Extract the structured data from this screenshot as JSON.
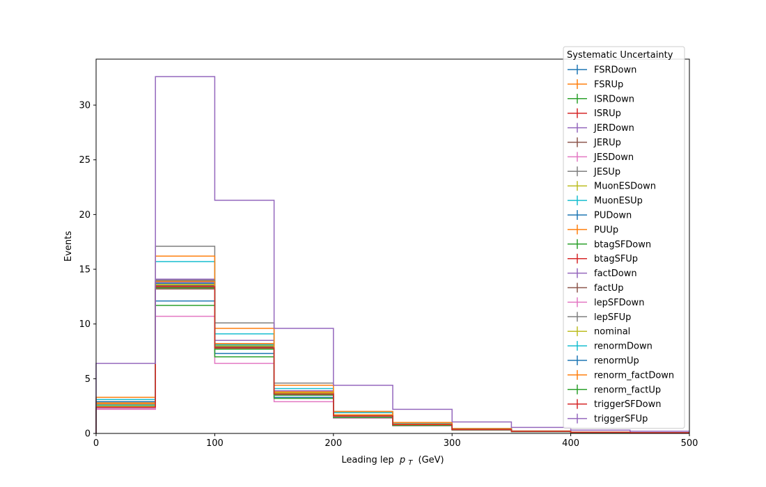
{
  "chart_data": {
    "type": "line",
    "drawstyle": "steps-post",
    "title": "",
    "xlabel": "Leading lep",
    "xlabel_math_symbol": "p",
    "xlabel_math_subscript": "T",
    "xlabel_unit": "(GeV)",
    "ylabel": "Events",
    "xlim": [
      0,
      500
    ],
    "ylim": [
      0,
      34.2
    ],
    "x_ticks": [
      0,
      100,
      200,
      300,
      400,
      500
    ],
    "y_ticks": [
      0,
      5,
      10,
      15,
      20,
      25,
      30
    ],
    "grid": false,
    "legend": {
      "title": "Systematic Uncertainty",
      "placement": "top-right"
    },
    "bin_edges": [
      0,
      50,
      100,
      150,
      200,
      250,
      300,
      350,
      400,
      450,
      500
    ],
    "series": [
      {
        "name": "FSRDown",
        "color": "#1f77b4",
        "values": [
          2.5,
          13.7,
          7.9,
          3.6,
          1.6,
          0.8,
          0.35,
          0.18,
          0.1,
          0.06
        ]
      },
      {
        "name": "FSRUp",
        "color": "#ff7f0e",
        "values": [
          2.8,
          13.9,
          8.1,
          3.8,
          1.7,
          0.85,
          0.37,
          0.19,
          0.1,
          0.06
        ]
      },
      {
        "name": "ISRDown",
        "color": "#2ca02c",
        "values": [
          2.5,
          13.8,
          8.0,
          3.7,
          1.6,
          0.82,
          0.36,
          0.18,
          0.1,
          0.06
        ]
      },
      {
        "name": "ISRUp",
        "color": "#d62728",
        "values": [
          2.6,
          13.9,
          8.0,
          3.7,
          1.65,
          0.83,
          0.36,
          0.18,
          0.1,
          0.06
        ]
      },
      {
        "name": "JERDown",
        "color": "#9467bd",
        "values": [
          2.5,
          14.1,
          8.5,
          3.9,
          1.7,
          0.85,
          0.37,
          0.19,
          0.1,
          0.06
        ]
      },
      {
        "name": "JERUp",
        "color": "#8c564b",
        "values": [
          2.4,
          13.2,
          7.9,
          3.6,
          1.6,
          0.8,
          0.35,
          0.18,
          0.1,
          0.06
        ]
      },
      {
        "name": "JESDown",
        "color": "#e377c2",
        "values": [
          2.2,
          10.7,
          6.4,
          2.9,
          1.4,
          0.7,
          0.3,
          0.15,
          0.08,
          0.05
        ]
      },
      {
        "name": "JESUp",
        "color": "#7f7f7f",
        "values": [
          2.9,
          17.1,
          10.1,
          4.6,
          2.0,
          1.0,
          0.45,
          0.22,
          0.12,
          0.07
        ]
      },
      {
        "name": "MuonESDown",
        "color": "#bcbd22",
        "values": [
          2.6,
          13.6,
          8.0,
          3.7,
          1.6,
          0.82,
          0.36,
          0.18,
          0.1,
          0.06
        ]
      },
      {
        "name": "MuonESUp",
        "color": "#17becf",
        "values": [
          3.1,
          15.7,
          9.1,
          4.1,
          1.9,
          0.95,
          0.42,
          0.21,
          0.11,
          0.07
        ]
      },
      {
        "name": "PUDown",
        "color": "#1f77b4",
        "values": [
          2.9,
          12.1,
          7.3,
          3.3,
          1.5,
          0.75,
          0.33,
          0.16,
          0.09,
          0.05
        ]
      },
      {
        "name": "PUUp",
        "color": "#ff7f0e",
        "values": [
          3.3,
          16.2,
          9.6,
          4.4,
          2.0,
          1.0,
          0.44,
          0.22,
          0.12,
          0.07
        ]
      },
      {
        "name": "btagSFDown",
        "color": "#2ca02c",
        "values": [
          2.3,
          11.7,
          7.0,
          3.2,
          1.45,
          0.72,
          0.32,
          0.16,
          0.09,
          0.05
        ]
      },
      {
        "name": "btagSFUp",
        "color": "#d62728",
        "values": [
          2.6,
          13.5,
          7.8,
          3.6,
          1.6,
          0.8,
          0.35,
          0.18,
          0.1,
          0.06
        ]
      },
      {
        "name": "factDown",
        "color": "#9467bd",
        "values": [
          2.5,
          13.8,
          8.1,
          3.7,
          1.65,
          0.83,
          0.36,
          0.18,
          0.1,
          0.06
        ]
      },
      {
        "name": "factUp",
        "color": "#8c564b",
        "values": [
          2.4,
          13.5,
          7.9,
          3.6,
          1.6,
          0.8,
          0.35,
          0.18,
          0.1,
          0.06
        ]
      },
      {
        "name": "lepSFDown",
        "color": "#e377c2",
        "values": [
          2.3,
          13.3,
          7.8,
          3.5,
          1.55,
          0.78,
          0.34,
          0.17,
          0.09,
          0.05
        ]
      },
      {
        "name": "lepSFUp",
        "color": "#7f7f7f",
        "values": [
          2.6,
          14.0,
          8.2,
          3.8,
          1.7,
          0.85,
          0.37,
          0.19,
          0.1,
          0.06
        ]
      },
      {
        "name": "nominal",
        "color": "#bcbd22",
        "values": [
          2.5,
          13.6,
          8.0,
          3.7,
          1.6,
          0.82,
          0.36,
          0.18,
          0.1,
          0.06
        ]
      },
      {
        "name": "renormDown",
        "color": "#17becf",
        "values": [
          2.6,
          13.9,
          8.1,
          3.8,
          1.7,
          0.84,
          0.37,
          0.19,
          0.1,
          0.06
        ]
      },
      {
        "name": "renormUp",
        "color": "#1f77b4",
        "values": [
          2.4,
          13.4,
          7.8,
          3.6,
          1.6,
          0.8,
          0.35,
          0.18,
          0.1,
          0.06
        ]
      },
      {
        "name": "renorm_factDown",
        "color": "#ff7f0e",
        "values": [
          2.7,
          13.9,
          8.2,
          3.8,
          1.7,
          0.85,
          0.37,
          0.19,
          0.1,
          0.06
        ]
      },
      {
        "name": "renorm_factUp",
        "color": "#2ca02c",
        "values": [
          2.4,
          13.3,
          7.7,
          3.5,
          1.6,
          0.78,
          0.34,
          0.17,
          0.09,
          0.05
        ]
      },
      {
        "name": "triggerSFDown",
        "color": "#d62728",
        "values": [
          2.4,
          13.4,
          7.8,
          3.6,
          1.6,
          0.8,
          0.35,
          0.18,
          0.1,
          0.06
        ]
      },
      {
        "name": "triggerSFUp",
        "color": "#9467bd",
        "values": [
          6.4,
          32.6,
          21.3,
          9.6,
          4.4,
          2.2,
          1.05,
          0.55,
          0.3,
          0.2
        ]
      }
    ]
  }
}
